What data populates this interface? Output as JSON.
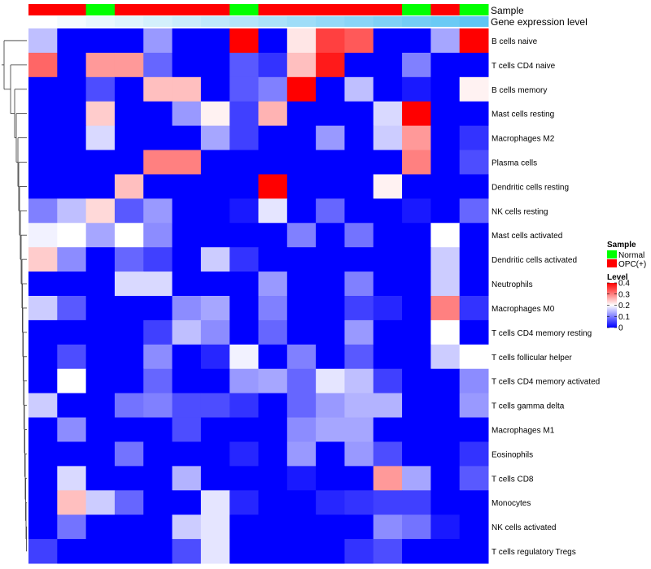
{
  "chart_data": {
    "type": "heatmap",
    "title": "",
    "annotation_tracks": [
      {
        "name": "Sample",
        "values": [
          "OPC(+)",
          "OPC(+)",
          "Normal",
          "OPC(+)",
          "OPC(+)",
          "OPC(+)",
          "OPC(+)",
          "Normal",
          "OPC(+)",
          "OPC(+)",
          "OPC(+)",
          "OPC(+)",
          "OPC(+)",
          "Normal",
          "OPC(+)",
          "Normal"
        ]
      },
      {
        "name": "Gene expression level",
        "values": [
          0,
          0.07,
          0.14,
          0.2,
          0.27,
          0.33,
          0.4,
          0.47,
          0.53,
          0.6,
          0.67,
          0.73,
          0.8,
          0.87,
          0.93,
          1
        ]
      }
    ],
    "rows": [
      "B cells naive",
      "T cells CD4 naive",
      "B cells memory",
      "Mast cells resting",
      "Macrophages M2",
      "Plasma cells",
      "Dendritic cells resting",
      "NK cells resting",
      "Mast cells activated",
      "Dendritic cells activated",
      "Neutrophils",
      "Macrophages M0",
      "T cells CD4 memory resting",
      "T cells follicular helper",
      "T cells CD4 memory activated",
      "T cells gamma delta",
      "Macrophages M1",
      "Eosinophils",
      "T cells CD8",
      "Monocytes",
      "NK cells activated",
      "T cells regulatory  Tregs"
    ],
    "matrix": [
      [
        0.15,
        0,
        0,
        0,
        0.12,
        0,
        0,
        0.4,
        0,
        0.22,
        0.35,
        0.33,
        0,
        0,
        0.13,
        0.4
      ],
      [
        0.32,
        0,
        0.28,
        0.28,
        0.08,
        0,
        0,
        0.07,
        0.04,
        0.25,
        0.38,
        0,
        0,
        0.1,
        0,
        0
      ],
      [
        0,
        0,
        0.06,
        0,
        0.25,
        0.25,
        0,
        0.07,
        0.1,
        0.4,
        0,
        0.15,
        0,
        0.02,
        0,
        0.21
      ],
      [
        0,
        0,
        0.24,
        0,
        0,
        0.12,
        0.21,
        0.05,
        0.26,
        0,
        0,
        0,
        0.17,
        0.4,
        0,
        0
      ],
      [
        0,
        0,
        0.17,
        0,
        0,
        0,
        0.13,
        0.05,
        0,
        0,
        0.12,
        0,
        0.16,
        0.28,
        0,
        0.04
      ],
      [
        0,
        0,
        0,
        0,
        0.3,
        0.3,
        0,
        0,
        0,
        0,
        0,
        0,
        0,
        0.3,
        0,
        0.06
      ],
      [
        0,
        0,
        0,
        0.25,
        0,
        0,
        0,
        0,
        0.4,
        0,
        0,
        0,
        0.21,
        0,
        0,
        0
      ],
      [
        0.1,
        0.15,
        0.23,
        0.07,
        0.12,
        0,
        0,
        0.02,
        0.18,
        0,
        0.08,
        0,
        0,
        0.02,
        0,
        0.08
      ],
      [
        0.19,
        0.2,
        0.13,
        0.2,
        0.11,
        0,
        0,
        0,
        0,
        0.1,
        0,
        0.09,
        0,
        0,
        0.2,
        0
      ],
      [
        0.24,
        0.11,
        0,
        0.08,
        0.05,
        0,
        0.16,
        0.04,
        0,
        0,
        0,
        0,
        0,
        0,
        0.16,
        0
      ],
      [
        0,
        0,
        0,
        0.17,
        0.17,
        0,
        0,
        0,
        0.12,
        0,
        0,
        0.1,
        0,
        0,
        0.16,
        0
      ],
      [
        0.16,
        0.07,
        0,
        0,
        0,
        0.11,
        0.13,
        0,
        0.1,
        0,
        0,
        0.05,
        0.03,
        0,
        0.3,
        0.04
      ],
      [
        0,
        0,
        0,
        0,
        0.05,
        0.15,
        0.11,
        0,
        0.08,
        0,
        0,
        0.12,
        0,
        0,
        0.2,
        0
      ],
      [
        0,
        0.06,
        0,
        0,
        0.11,
        0,
        0.03,
        0.19,
        0,
        0.1,
        0,
        0.07,
        0,
        0,
        0.16,
        0.2
      ],
      [
        0,
        0.2,
        0,
        0,
        0.08,
        0,
        0,
        0.12,
        0.13,
        0.08,
        0.18,
        0.15,
        0.05,
        0,
        0,
        0.11
      ],
      [
        0.16,
        0,
        0,
        0.09,
        0.1,
        0.06,
        0.06,
        0.04,
        0,
        0.08,
        0.12,
        0.14,
        0.14,
        0,
        0,
        0.12
      ],
      [
        0,
        0.11,
        0,
        0,
        0,
        0.06,
        0,
        0,
        0,
        0.11,
        0.13,
        0.13,
        0,
        0,
        0,
        0
      ],
      [
        0,
        0,
        0,
        0.09,
        0,
        0,
        0,
        0.03,
        0,
        0.12,
        0,
        0.12,
        0.06,
        0,
        0,
        0.04
      ],
      [
        0,
        0.17,
        0,
        0,
        0,
        0.14,
        0,
        0,
        0,
        0.02,
        0,
        0,
        0.28,
        0.13,
        0,
        0.07
      ],
      [
        0,
        0.25,
        0.16,
        0.08,
        0,
        0,
        0.18,
        0.03,
        0,
        0,
        0.03,
        0.04,
        0.05,
        0.05,
        0,
        0
      ],
      [
        0,
        0.09,
        0,
        0,
        0,
        0.16,
        0.18,
        0,
        0,
        0,
        0,
        0,
        0.11,
        0.09,
        0.02,
        0
      ],
      [
        0.05,
        0,
        0,
        0,
        0,
        0.06,
        0.18,
        0,
        0,
        0,
        0,
        0.04,
        0.06,
        0,
        0,
        0
      ]
    ],
    "legend": {
      "sample": {
        "title": "Sample",
        "entries": [
          {
            "label": "Normal",
            "color": "#00ff00"
          },
          {
            "label": "OPC(+)",
            "color": "#ff0000"
          }
        ]
      },
      "level": {
        "title": "Level",
        "ticks": [
          {
            "label": "0.4",
            "value": 0.4
          },
          {
            "label": "0.3",
            "value": 0.3
          },
          {
            "label": "0.2",
            "value": 0.2
          },
          {
            "label": "0.1",
            "value": 0.1
          },
          {
            "label": "0",
            "value": 0
          }
        ],
        "range": [
          0,
          0.4
        ]
      }
    },
    "colors": {
      "low": "#0000ff",
      "mid": "#ffffff",
      "high": "#ff0000",
      "gene_low": "#ffffff",
      "gene_high": "#5fc6f4",
      "dendrogram": "#333333"
    }
  }
}
